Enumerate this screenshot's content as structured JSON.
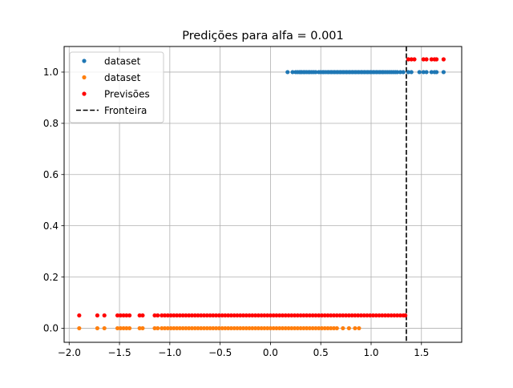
{
  "chart_data": {
    "type": "scatter",
    "title": "Predições para alfa = 0.001",
    "xlabel": "",
    "ylabel": "",
    "xlim": [
      -2.05,
      1.9
    ],
    "ylim": [
      -0.055,
      1.1
    ],
    "xticks": [
      "−2.0",
      "−1.5",
      "−1.0",
      "−0.5",
      "0.0",
      "0.5",
      "1.0",
      "1.5"
    ],
    "xtick_values": [
      -2.0,
      -1.5,
      -1.0,
      -0.5,
      0.0,
      0.5,
      1.0,
      1.5
    ],
    "yticks": [
      "0.0",
      "0.2",
      "0.4",
      "0.6",
      "0.8",
      "1.0"
    ],
    "ytick_values": [
      0.0,
      0.2,
      0.4,
      0.6,
      0.8,
      1.0
    ],
    "grid": true,
    "legend_position": "top-left",
    "series": [
      {
        "name": "dataset",
        "color": "#1f77b4",
        "marker": "dot",
        "y": 1.0,
        "x": [
          0.17,
          0.22,
          0.25,
          0.27,
          0.29,
          0.3,
          0.31,
          0.33,
          0.34,
          0.36,
          0.38,
          0.39,
          0.41,
          0.43,
          0.45,
          0.48,
          0.5,
          0.52,
          0.53,
          0.55,
          0.57,
          0.58,
          0.6,
          0.61,
          0.63,
          0.64,
          0.66,
          0.67,
          0.69,
          0.7,
          0.72,
          0.73,
          0.75,
          0.76,
          0.78,
          0.79,
          0.81,
          0.82,
          0.84,
          0.85,
          0.87,
          0.88,
          0.9,
          0.91,
          0.93,
          0.94,
          0.96,
          0.97,
          0.99,
          1.0,
          1.02,
          1.03,
          1.05,
          1.06,
          1.08,
          1.09,
          1.11,
          1.12,
          1.14,
          1.16,
          1.18,
          1.2,
          1.22,
          1.24,
          1.26,
          1.29,
          1.32,
          1.37,
          1.4,
          1.48,
          1.52,
          1.55,
          1.6,
          1.63,
          1.65,
          1.72
        ]
      },
      {
        "name": "dataset",
        "color": "#ff7f0e",
        "marker": "dot",
        "y": 0.0,
        "x": [
          -1.9,
          -1.72,
          -1.65,
          -1.52,
          -1.49,
          -1.46,
          -1.43,
          -1.4,
          -1.3,
          -1.27,
          -1.15,
          -1.12,
          -1.08,
          -1.05,
          -1.02,
          -0.99,
          -0.96,
          -0.93,
          -0.9,
          -0.87,
          -0.84,
          -0.81,
          -0.78,
          -0.75,
          -0.72,
          -0.69,
          -0.66,
          -0.63,
          -0.6,
          -0.57,
          -0.54,
          -0.51,
          -0.48,
          -0.45,
          -0.42,
          -0.39,
          -0.36,
          -0.33,
          -0.3,
          -0.27,
          -0.24,
          -0.21,
          -0.18,
          -0.15,
          -0.12,
          -0.09,
          -0.06,
          -0.03,
          0.0,
          0.03,
          0.06,
          0.09,
          0.12,
          0.15,
          0.18,
          0.21,
          0.24,
          0.27,
          0.3,
          0.33,
          0.36,
          0.39,
          0.42,
          0.45,
          0.48,
          0.51,
          0.54,
          0.57,
          0.6,
          0.63,
          0.66,
          0.72,
          0.78,
          0.84,
          0.88
        ]
      },
      {
        "name": "Previsões",
        "color": "#ff0000",
        "marker": "dot",
        "points": [
          [
            -1.9,
            0.05
          ],
          [
            -1.72,
            0.05
          ],
          [
            -1.65,
            0.05
          ],
          [
            -1.52,
            0.05
          ],
          [
            -1.49,
            0.05
          ],
          [
            -1.46,
            0.05
          ],
          [
            -1.43,
            0.05
          ],
          [
            -1.4,
            0.05
          ],
          [
            -1.3,
            0.05
          ],
          [
            -1.27,
            0.05
          ],
          [
            -1.15,
            0.05
          ],
          [
            -1.12,
            0.05
          ],
          [
            -1.08,
            0.05
          ],
          [
            -1.05,
            0.05
          ],
          [
            -1.02,
            0.05
          ],
          [
            -0.99,
            0.05
          ],
          [
            -0.96,
            0.05
          ],
          [
            -0.93,
            0.05
          ],
          [
            -0.9,
            0.05
          ],
          [
            -0.87,
            0.05
          ],
          [
            -0.84,
            0.05
          ],
          [
            -0.81,
            0.05
          ],
          [
            -0.78,
            0.05
          ],
          [
            -0.75,
            0.05
          ],
          [
            -0.72,
            0.05
          ],
          [
            -0.69,
            0.05
          ],
          [
            -0.66,
            0.05
          ],
          [
            -0.63,
            0.05
          ],
          [
            -0.6,
            0.05
          ],
          [
            -0.57,
            0.05
          ],
          [
            -0.54,
            0.05
          ],
          [
            -0.51,
            0.05
          ],
          [
            -0.48,
            0.05
          ],
          [
            -0.45,
            0.05
          ],
          [
            -0.42,
            0.05
          ],
          [
            -0.39,
            0.05
          ],
          [
            -0.36,
            0.05
          ],
          [
            -0.33,
            0.05
          ],
          [
            -0.3,
            0.05
          ],
          [
            -0.27,
            0.05
          ],
          [
            -0.24,
            0.05
          ],
          [
            -0.21,
            0.05
          ],
          [
            -0.18,
            0.05
          ],
          [
            -0.15,
            0.05
          ],
          [
            -0.12,
            0.05
          ],
          [
            -0.09,
            0.05
          ],
          [
            -0.06,
            0.05
          ],
          [
            -0.03,
            0.05
          ],
          [
            0.0,
            0.05
          ],
          [
            0.03,
            0.05
          ],
          [
            0.06,
            0.05
          ],
          [
            0.09,
            0.05
          ],
          [
            0.12,
            0.05
          ],
          [
            0.15,
            0.05
          ],
          [
            0.18,
            0.05
          ],
          [
            0.21,
            0.05
          ],
          [
            0.24,
            0.05
          ],
          [
            0.27,
            0.05
          ],
          [
            0.3,
            0.05
          ],
          [
            0.33,
            0.05
          ],
          [
            0.36,
            0.05
          ],
          [
            0.39,
            0.05
          ],
          [
            0.42,
            0.05
          ],
          [
            0.45,
            0.05
          ],
          [
            0.48,
            0.05
          ],
          [
            0.51,
            0.05
          ],
          [
            0.54,
            0.05
          ],
          [
            0.57,
            0.05
          ],
          [
            0.6,
            0.05
          ],
          [
            0.63,
            0.05
          ],
          [
            0.66,
            0.05
          ],
          [
            0.69,
            0.05
          ],
          [
            0.72,
            0.05
          ],
          [
            0.75,
            0.05
          ],
          [
            0.78,
            0.05
          ],
          [
            0.81,
            0.05
          ],
          [
            0.84,
            0.05
          ],
          [
            0.87,
            0.05
          ],
          [
            0.9,
            0.05
          ],
          [
            0.93,
            0.05
          ],
          [
            0.96,
            0.05
          ],
          [
            0.99,
            0.05
          ],
          [
            1.02,
            0.05
          ],
          [
            1.05,
            0.05
          ],
          [
            1.08,
            0.05
          ],
          [
            1.11,
            0.05
          ],
          [
            1.14,
            0.05
          ],
          [
            1.17,
            0.05
          ],
          [
            1.2,
            0.05
          ],
          [
            1.23,
            0.05
          ],
          [
            1.26,
            0.05
          ],
          [
            1.29,
            0.05
          ],
          [
            1.32,
            0.05
          ],
          [
            1.34,
            0.05
          ],
          [
            1.37,
            1.05
          ],
          [
            1.4,
            1.05
          ],
          [
            1.43,
            1.05
          ],
          [
            1.52,
            1.05
          ],
          [
            1.55,
            1.05
          ],
          [
            1.6,
            1.05
          ],
          [
            1.63,
            1.05
          ],
          [
            1.65,
            1.05
          ],
          [
            1.72,
            1.05
          ]
        ]
      },
      {
        "name": "Fronteira",
        "color": "#000000",
        "marker": "dashed-vertical-line",
        "x": 1.35
      }
    ],
    "legend": [
      "dataset",
      "dataset",
      "Previsões",
      "Fronteira"
    ]
  }
}
